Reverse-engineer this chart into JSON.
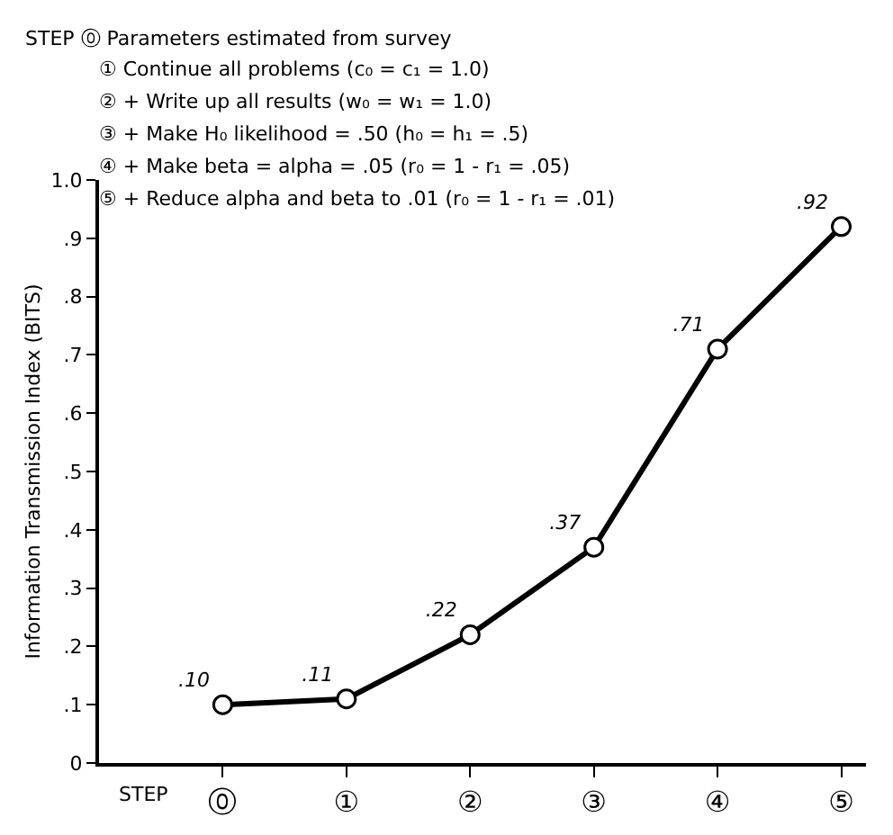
{
  "chart_data": {
    "type": "line",
    "xlabel": "STEP",
    "ylabel": "Information Transmission Index (BITS)",
    "categories": [
      "⓪",
      "①",
      "②",
      "③",
      "④",
      "⑤"
    ],
    "series": [
      {
        "color": "#000000",
        "values": [
          0.1,
          0.11,
          0.22,
          0.37,
          0.71,
          0.92
        ],
        "value_labels": [
          ".10",
          ".11",
          ".22",
          ".37",
          ".71",
          ".92"
        ]
      }
    ],
    "ylim": [
      0,
      1.0
    ],
    "yticks": [
      0,
      {
        "value": 0.1,
        "label": ".1"
      },
      {
        "value": 0.2,
        "label": ".2"
      },
      {
        "value": 0.3,
        "label": ".3"
      },
      {
        "value": 0.4,
        "label": ".4"
      },
      {
        "value": 0.5,
        "label": ".5"
      },
      {
        "value": 0.6,
        "label": ".6"
      },
      {
        "value": 0.7,
        "label": ".7"
      },
      {
        "value": 0.8,
        "label": ".8"
      },
      {
        "value": 0.9,
        "label": ".9"
      },
      {
        "value": 1.0,
        "label": "1.0"
      }
    ],
    "marker": "circle",
    "line_style": "solid",
    "annotations": [
      "STEP ⓪ Parameters estimated from survey",
      "① Continue all problems (c₀ = c₁ = 1.0)",
      "② + Write up all results (w₀ = w₁ = 1.0)",
      "③ + Make H₀ likelihood = .50 (h₀ = h₁ = .5)",
      "④ + Make beta = alpha = .05 (r₀ = 1 - r₁ = .05)",
      "⑤ + Reduce alpha and beta to .01 (r₀ = 1 - r₁ = .01)"
    ]
  }
}
